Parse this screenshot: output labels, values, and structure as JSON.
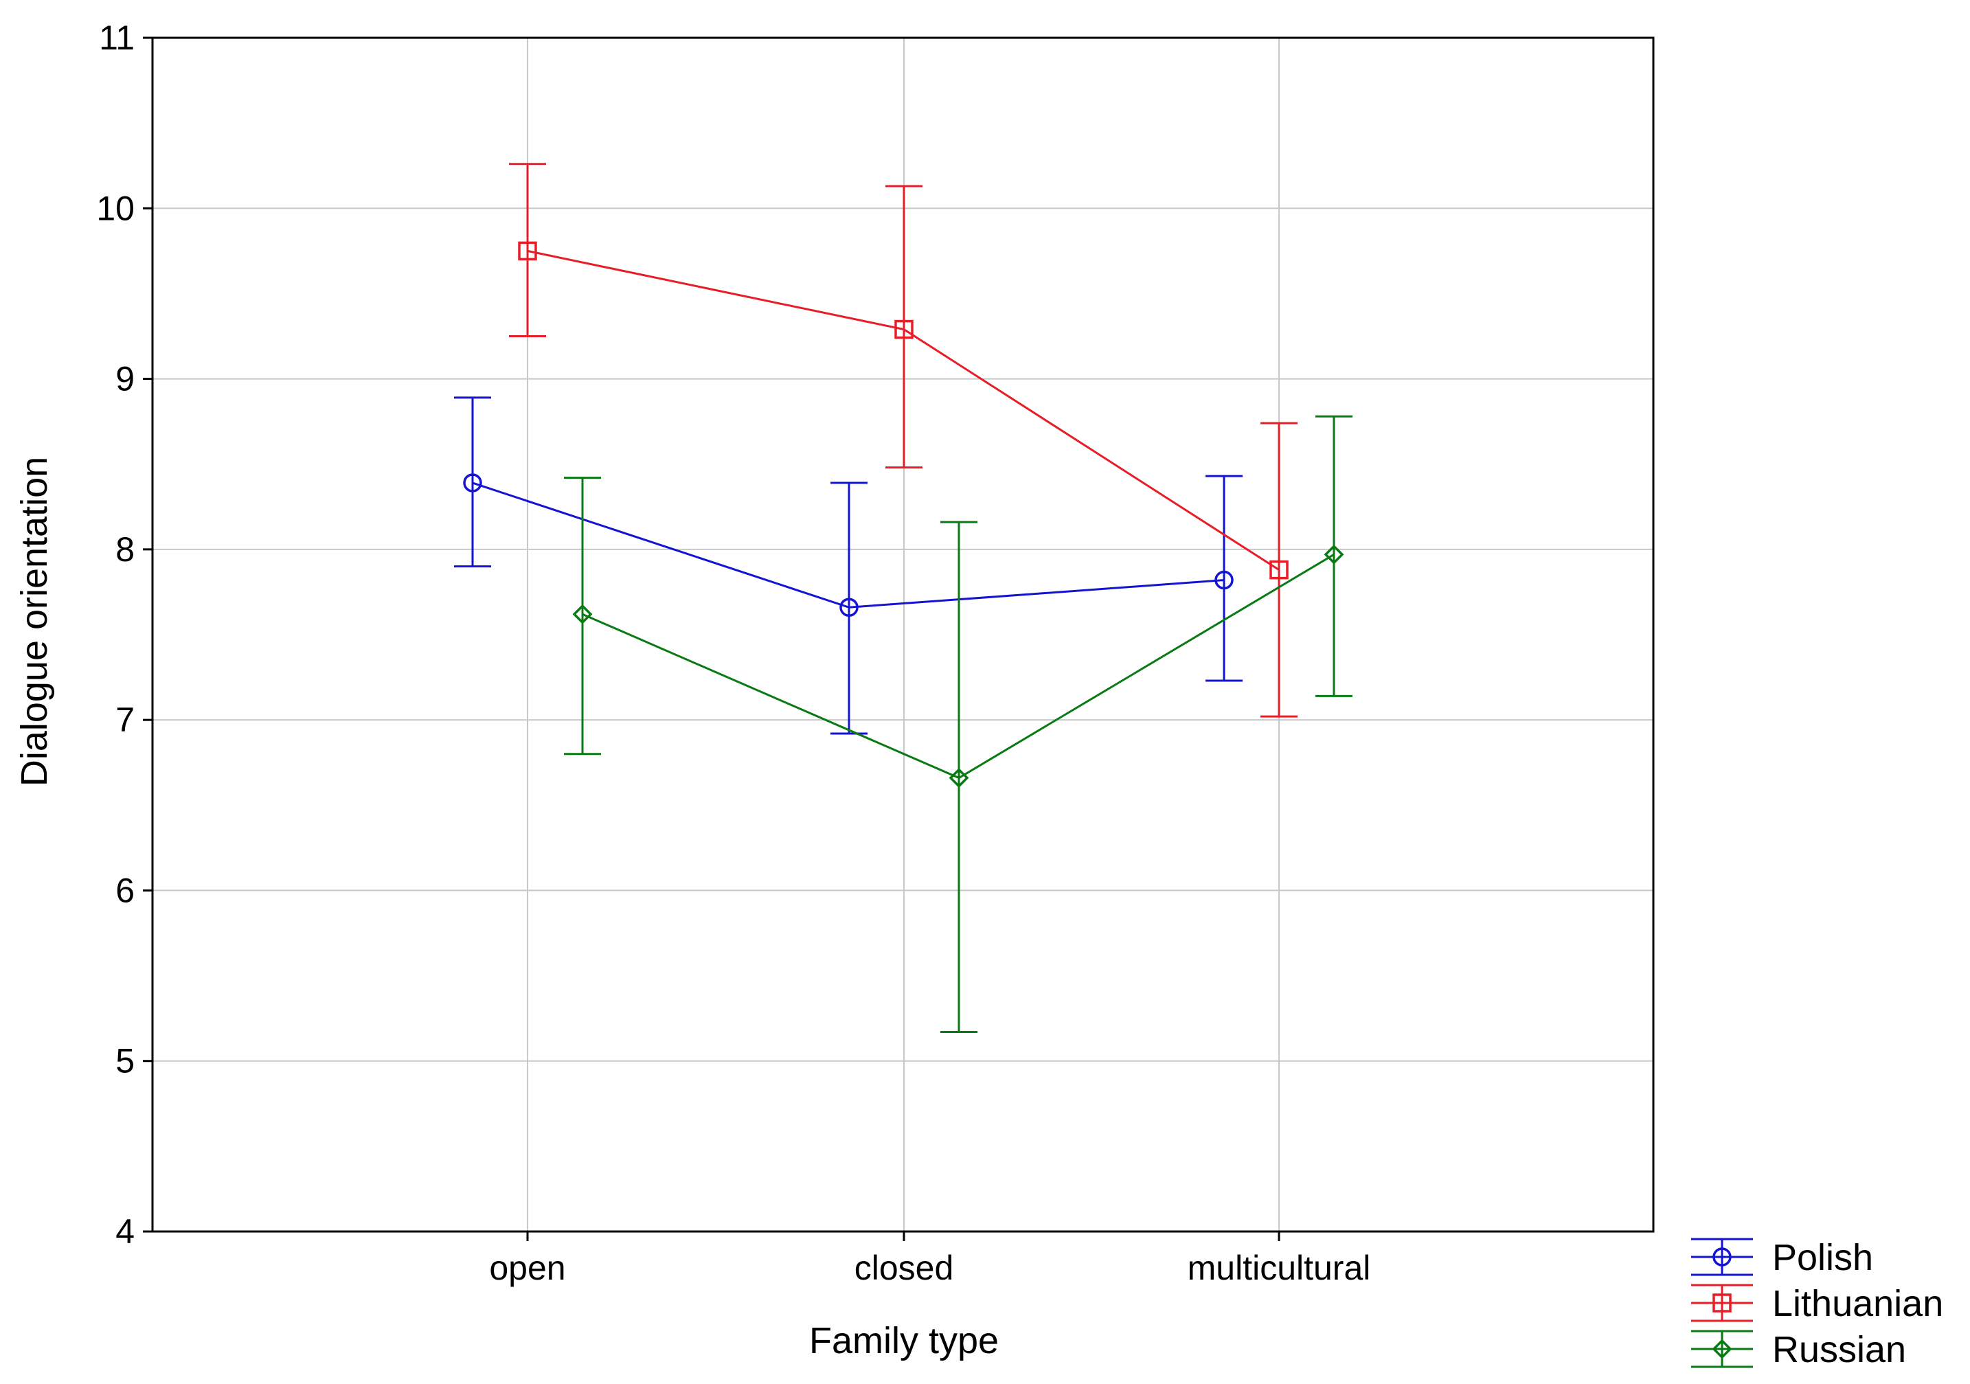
{
  "chart_data": {
    "type": "line",
    "xlabel": "Family type",
    "ylabel": "Dialogue orientation",
    "categories": [
      "open",
      "closed",
      "multicultural"
    ],
    "ylim": [
      4,
      11
    ],
    "yticks": [
      4,
      5,
      6,
      7,
      8,
      9,
      10,
      11
    ],
    "grid": true,
    "legend_position": "bottom-right",
    "series": [
      {
        "name": "Polish",
        "color": "#1414d2",
        "marker": "circle",
        "values": [
          8.39,
          7.66,
          7.82
        ],
        "lower": [
          7.9,
          6.92,
          7.23
        ],
        "upper": [
          8.89,
          8.39,
          8.43
        ]
      },
      {
        "name": "Lithuanian",
        "color": "#e61e28",
        "marker": "square",
        "values": [
          9.75,
          9.29,
          7.88
        ],
        "lower": [
          9.25,
          8.48,
          7.02
        ],
        "upper": [
          10.26,
          10.13,
          8.74
        ]
      },
      {
        "name": "Russian",
        "color": "#0a7a14",
        "marker": "diamond",
        "values": [
          7.62,
          6.66,
          7.97
        ],
        "lower": [
          6.8,
          5.17,
          7.14
        ],
        "upper": [
          8.42,
          8.16,
          8.78
        ]
      }
    ]
  }
}
